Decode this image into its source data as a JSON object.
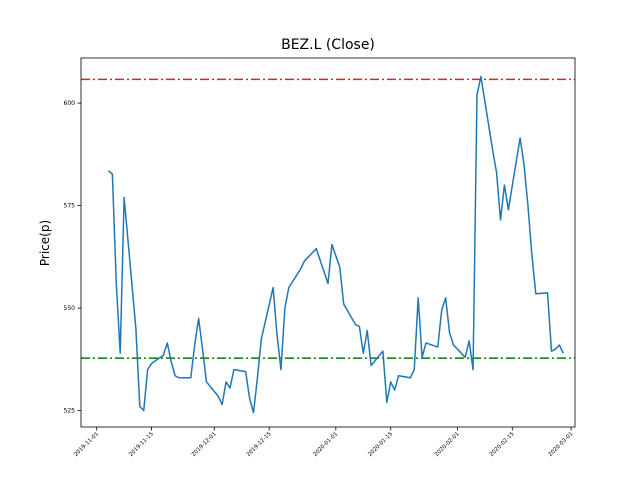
{
  "chart_data": {
    "type": "line",
    "title": "BEZ.L (Close)",
    "xlabel": "",
    "ylabel": "Price(p)",
    "ylim": [
      521.0,
      611.0
    ],
    "xlim": [
      "2019-10-28",
      "2020-03-02"
    ],
    "yticks": [
      525,
      550,
      575,
      600
    ],
    "xticks": [
      "2019-11-01",
      "2019-11-15",
      "2019-12-01",
      "2019-12-15",
      "2020-01-01",
      "2020-01-15",
      "2020-02-01",
      "2020-02-15",
      "2020-03-01"
    ],
    "grid": false,
    "hlines": [
      {
        "value": 605.8,
        "color": "#d62728",
        "style": "dash-dot"
      },
      {
        "value": 537.8,
        "color": "#008000",
        "style": "dash-dot"
      }
    ],
    "series": [
      {
        "color": "#1f77b4",
        "x": [
          "2019-11-04",
          "2019-11-05",
          "2019-11-06",
          "2019-11-07",
          "2019-11-08",
          "2019-11-11",
          "2019-11-12",
          "2019-11-13",
          "2019-11-14",
          "2019-11-15",
          "2019-11-18",
          "2019-11-19",
          "2019-11-20",
          "2019-11-21",
          "2019-11-22",
          "2019-11-25",
          "2019-11-26",
          "2019-11-27",
          "2019-11-28",
          "2019-11-29",
          "2019-12-02",
          "2019-12-03",
          "2019-12-04",
          "2019-12-05",
          "2019-12-06",
          "2019-12-09",
          "2019-12-10",
          "2019-12-11",
          "2019-12-12",
          "2019-12-13",
          "2019-12-16",
          "2019-12-17",
          "2019-12-18",
          "2019-12-19",
          "2019-12-20",
          "2019-12-23",
          "2019-12-24",
          "2019-12-27",
          "2019-12-30",
          "2019-12-31",
          "2020-01-02",
          "2020-01-03",
          "2020-01-06",
          "2020-01-07",
          "2020-01-08",
          "2020-01-09",
          "2020-01-10",
          "2020-01-13",
          "2020-01-14",
          "2020-01-15",
          "2020-01-16",
          "2020-01-17",
          "2020-01-20",
          "2020-01-21",
          "2020-01-22",
          "2020-01-23",
          "2020-01-24",
          "2020-01-27",
          "2020-01-28",
          "2020-01-29",
          "2020-01-30",
          "2020-01-31",
          "2020-02-03",
          "2020-02-04",
          "2020-02-05",
          "2020-02-06",
          "2020-02-07",
          "2020-02-10",
          "2020-02-11",
          "2020-02-12",
          "2020-02-13",
          "2020-02-14",
          "2020-02-17",
          "2020-02-18",
          "2020-02-19",
          "2020-02-20",
          "2020-02-21",
          "2020-02-24",
          "2020-02-25",
          "2020-02-26",
          "2020-02-27",
          "2020-02-28"
        ],
        "values": [
          583.5,
          582.7,
          556.0,
          539.0,
          577.0,
          545.0,
          526.0,
          525.0,
          535.0,
          536.5,
          538.5,
          541.5,
          537.0,
          533.5,
          533.0,
          533.0,
          541.0,
          547.5,
          540.0,
          532.0,
          528.5,
          526.5,
          532.0,
          530.5,
          535.0,
          534.5,
          528.0,
          524.5,
          533.0,
          542.5,
          555.0,
          543.5,
          535.0,
          550.0,
          555.0,
          559.5,
          561.5,
          564.5,
          556.0,
          565.5,
          560.0,
          551.0,
          546.0,
          545.5,
          539.0,
          544.5,
          536.0,
          539.5,
          527.0,
          532.0,
          530.0,
          533.5,
          533.0,
          535.0,
          552.5,
          538.0,
          541.5,
          540.5,
          549.5,
          552.5,
          544.0,
          541.0,
          538.0,
          542.0,
          535.0,
          602.0,
          606.5,
          588.5,
          583.0,
          571.5,
          580.0,
          574.0,
          591.5,
          585.0,
          575.0,
          563.0,
          553.5,
          553.7,
          539.5,
          540.0,
          541.0,
          539.0
        ]
      }
    ]
  }
}
